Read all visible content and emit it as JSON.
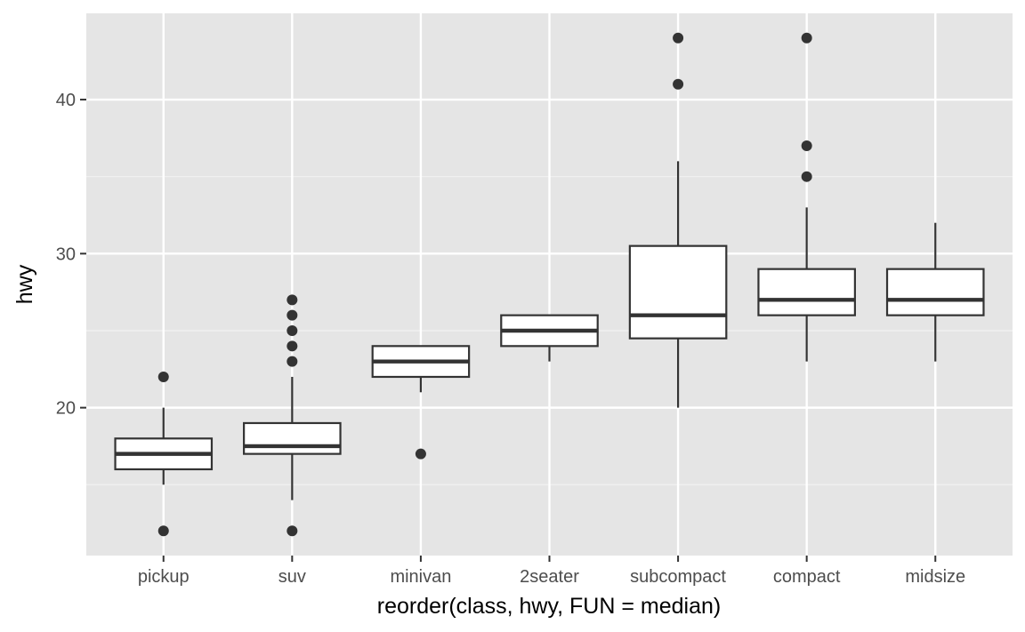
{
  "chart_data": {
    "type": "boxplot",
    "xlabel": "reorder(class, hwy, FUN = median)",
    "ylabel": "hwy",
    "ylim": [
      10.4,
      45.6
    ],
    "y_ticks": [
      20,
      30,
      40
    ],
    "y_minor_ticks": [
      15,
      25,
      35
    ],
    "grid": true,
    "categories": [
      "pickup",
      "suv",
      "minivan",
      "2seater",
      "subcompact",
      "compact",
      "midsize"
    ],
    "boxes": [
      {
        "category": "pickup",
        "whisker_low": 15,
        "q1": 16,
        "median": 17,
        "q3": 18,
        "whisker_high": 20,
        "outliers": [
          12,
          22
        ]
      },
      {
        "category": "suv",
        "whisker_low": 14,
        "q1": 17,
        "median": 17.5,
        "q3": 19,
        "whisker_high": 22,
        "outliers": [
          12,
          23,
          24,
          25,
          26,
          27
        ]
      },
      {
        "category": "minivan",
        "whisker_low": 21,
        "q1": 22,
        "median": 23,
        "q3": 24,
        "whisker_high": 24,
        "outliers": [
          17
        ]
      },
      {
        "category": "2seater",
        "whisker_low": 23,
        "q1": 24,
        "median": 25,
        "q3": 26,
        "whisker_high": 26,
        "outliers": []
      },
      {
        "category": "subcompact",
        "whisker_low": 20,
        "q1": 24.5,
        "median": 26,
        "q3": 30.5,
        "whisker_high": 36,
        "outliers": [
          41,
          44
        ]
      },
      {
        "category": "compact",
        "whisker_low": 23,
        "q1": 26,
        "median": 27,
        "q3": 29,
        "whisker_high": 33,
        "outliers": [
          35,
          37,
          44
        ]
      },
      {
        "category": "midsize",
        "whisker_low": 23,
        "q1": 26,
        "median": 27,
        "q3": 29,
        "whisker_high": 32,
        "outliers": []
      }
    ],
    "colors": {
      "panel_background": "#e5e5e5",
      "grid_major": "#ffffff",
      "grid_minor": "#f2f2f2",
      "box_fill": "#ffffff",
      "box_stroke": "#333333",
      "outlier": "#333333",
      "tick_text": "#4d4d4d",
      "axis_title": "#000000"
    }
  }
}
